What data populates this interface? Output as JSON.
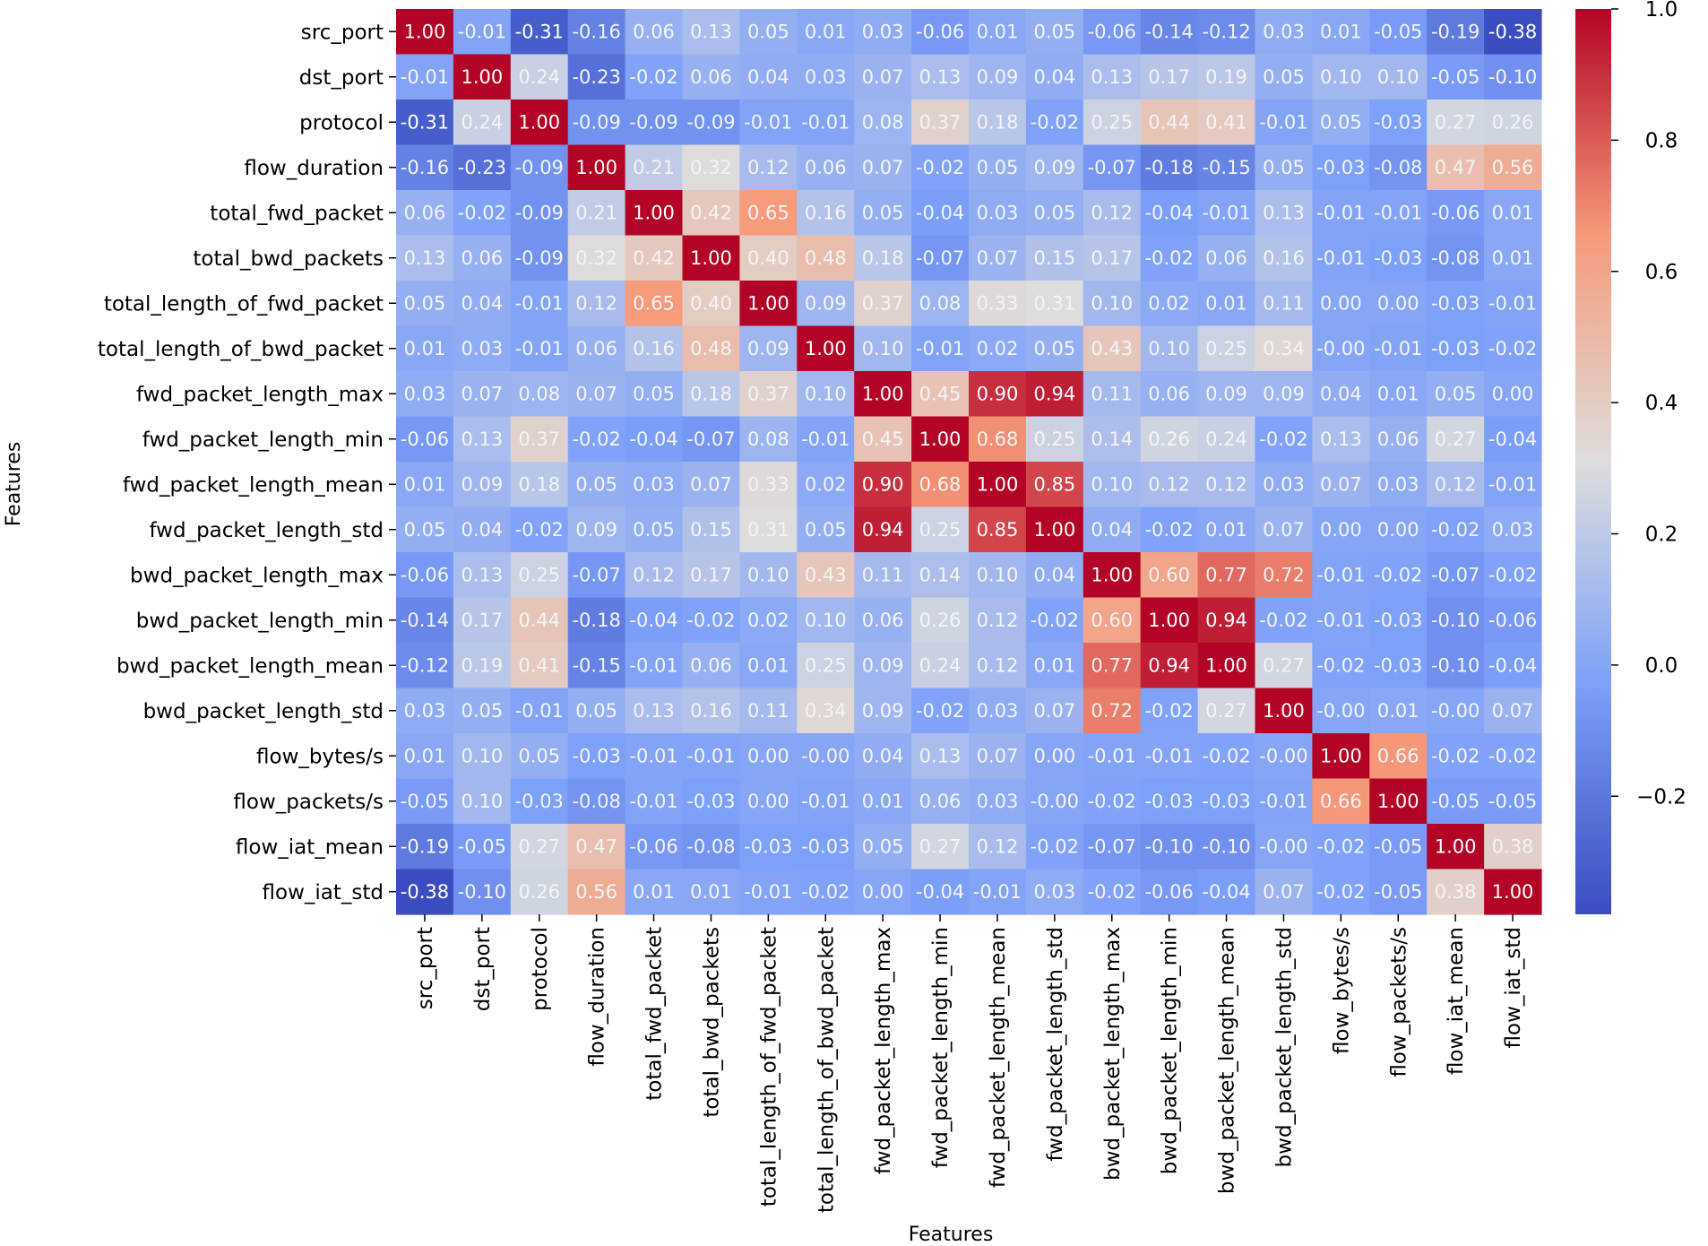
{
  "chart_data": {
    "type": "heatmap",
    "title": "",
    "xlabel": "Features",
    "ylabel": "Features",
    "colormap": "coolwarm",
    "vmin": -0.38,
    "vmax": 1.0,
    "colorbar_ticks": [
      1.0,
      0.8,
      0.6,
      0.4,
      0.2,
      0.0,
      -0.2
    ],
    "colorbar_tick_labels": [
      "1.0",
      "0.8",
      "0.6",
      "0.4",
      "0.2",
      "0.0",
      "−0.2"
    ],
    "labels": [
      "src_port",
      "dst_port",
      "protocol",
      "flow_duration",
      "total_fwd_packet",
      "total_bwd_packets",
      "total_length_of_fwd_packet",
      "total_length_of_bwd_packet",
      "fwd_packet_length_max",
      "fwd_packet_length_min",
      "fwd_packet_length_mean",
      "fwd_packet_length_std",
      "bwd_packet_length_max",
      "bwd_packet_length_min",
      "bwd_packet_length_mean",
      "bwd_packet_length_std",
      "flow_bytes/s",
      "flow_packets/s",
      "flow_iat_mean",
      "flow_iat_std"
    ],
    "matrix": [
      [
        1.0,
        -0.01,
        -0.31,
        -0.16,
        0.06,
        0.13,
        0.05,
        0.01,
        0.03,
        -0.06,
        0.01,
        0.05,
        -0.06,
        -0.14,
        -0.12,
        0.03,
        0.01,
        -0.05,
        -0.19,
        -0.38
      ],
      [
        -0.01,
        1.0,
        0.24,
        -0.23,
        -0.02,
        0.06,
        0.04,
        0.03,
        0.07,
        0.13,
        0.09,
        0.04,
        0.13,
        0.17,
        0.19,
        0.05,
        0.1,
        0.1,
        -0.05,
        -0.1
      ],
      [
        -0.31,
        0.24,
        1.0,
        -0.09,
        -0.09,
        -0.09,
        -0.01,
        -0.01,
        0.08,
        0.37,
        0.18,
        -0.02,
        0.25,
        0.44,
        0.41,
        -0.01,
        0.05,
        -0.03,
        0.27,
        0.26
      ],
      [
        -0.16,
        -0.23,
        -0.09,
        1.0,
        0.21,
        0.32,
        0.12,
        0.06,
        0.07,
        -0.02,
        0.05,
        0.09,
        -0.07,
        -0.18,
        -0.15,
        0.05,
        -0.03,
        -0.08,
        0.47,
        0.56
      ],
      [
        0.06,
        -0.02,
        -0.09,
        0.21,
        1.0,
        0.42,
        0.65,
        0.16,
        0.05,
        -0.04,
        0.03,
        0.05,
        0.12,
        -0.04,
        -0.01,
        0.13,
        -0.01,
        -0.01,
        -0.06,
        0.01
      ],
      [
        0.13,
        0.06,
        -0.09,
        0.32,
        0.42,
        1.0,
        0.4,
        0.48,
        0.18,
        -0.07,
        0.07,
        0.15,
        0.17,
        -0.02,
        0.06,
        0.16,
        -0.01,
        -0.03,
        -0.08,
        0.01
      ],
      [
        0.05,
        0.04,
        -0.01,
        0.12,
        0.65,
        0.4,
        1.0,
        0.09,
        0.37,
        0.08,
        0.33,
        0.31,
        0.1,
        0.02,
        0.01,
        0.11,
        0.0,
        0.0,
        -0.03,
        -0.01
      ],
      [
        0.01,
        0.03,
        -0.01,
        0.06,
        0.16,
        0.48,
        0.09,
        1.0,
        0.1,
        -0.01,
        0.02,
        0.05,
        0.43,
        0.1,
        0.25,
        0.34,
        -0.0,
        -0.01,
        -0.03,
        -0.02
      ],
      [
        0.03,
        0.07,
        0.08,
        0.07,
        0.05,
        0.18,
        0.37,
        0.1,
        1.0,
        0.45,
        0.9,
        0.94,
        0.11,
        0.06,
        0.09,
        0.09,
        0.04,
        0.01,
        0.05,
        0.0
      ],
      [
        -0.06,
        0.13,
        0.37,
        -0.02,
        -0.04,
        -0.07,
        0.08,
        -0.01,
        0.45,
        1.0,
        0.68,
        0.25,
        0.14,
        0.26,
        0.24,
        -0.02,
        0.13,
        0.06,
        0.27,
        -0.04
      ],
      [
        0.01,
        0.09,
        0.18,
        0.05,
        0.03,
        0.07,
        0.33,
        0.02,
        0.9,
        0.68,
        1.0,
        0.85,
        0.1,
        0.12,
        0.12,
        0.03,
        0.07,
        0.03,
        0.12,
        -0.01
      ],
      [
        0.05,
        0.04,
        -0.02,
        0.09,
        0.05,
        0.15,
        0.31,
        0.05,
        0.94,
        0.25,
        0.85,
        1.0,
        0.04,
        -0.02,
        0.01,
        0.07,
        0.0,
        0.0,
        -0.02,
        0.03
      ],
      [
        -0.06,
        0.13,
        0.25,
        -0.07,
        0.12,
        0.17,
        0.1,
        0.43,
        0.11,
        0.14,
        0.1,
        0.04,
        1.0,
        0.6,
        0.77,
        0.72,
        -0.01,
        -0.02,
        -0.07,
        -0.02
      ],
      [
        -0.14,
        0.17,
        0.44,
        -0.18,
        -0.04,
        -0.02,
        0.02,
        0.1,
        0.06,
        0.26,
        0.12,
        -0.02,
        0.6,
        1.0,
        0.94,
        -0.02,
        -0.01,
        -0.03,
        -0.1,
        -0.06
      ],
      [
        -0.12,
        0.19,
        0.41,
        -0.15,
        -0.01,
        0.06,
        0.01,
        0.25,
        0.09,
        0.24,
        0.12,
        0.01,
        0.77,
        0.94,
        1.0,
        0.27,
        -0.02,
        -0.03,
        -0.1,
        -0.04
      ],
      [
        0.03,
        0.05,
        -0.01,
        0.05,
        0.13,
        0.16,
        0.11,
        0.34,
        0.09,
        -0.02,
        0.03,
        0.07,
        0.72,
        -0.02,
        0.27,
        1.0,
        -0.0,
        0.01,
        -0.0,
        0.07
      ],
      [
        0.01,
        0.1,
        0.05,
        -0.03,
        -0.01,
        -0.01,
        0.0,
        -0.0,
        0.04,
        0.13,
        0.07,
        0.0,
        -0.01,
        -0.01,
        -0.02,
        -0.0,
        1.0,
        0.66,
        -0.02,
        -0.02
      ],
      [
        -0.05,
        0.1,
        -0.03,
        -0.08,
        -0.01,
        -0.03,
        0.0,
        -0.01,
        0.01,
        0.06,
        0.03,
        -0.0,
        -0.02,
        -0.03,
        -0.03,
        -0.01,
        0.66,
        1.0,
        -0.05,
        -0.05
      ],
      [
        -0.19,
        -0.05,
        0.27,
        0.47,
        -0.06,
        -0.08,
        -0.03,
        -0.03,
        0.05,
        0.27,
        0.12,
        -0.02,
        -0.07,
        -0.1,
        -0.1,
        -0.0,
        -0.02,
        -0.05,
        1.0,
        0.38
      ],
      [
        -0.38,
        -0.1,
        0.26,
        0.56,
        0.01,
        0.01,
        -0.01,
        -0.02,
        0.0,
        -0.04,
        -0.01,
        0.03,
        -0.02,
        -0.06,
        -0.04,
        0.07,
        -0.02,
        -0.05,
        0.38,
        1.0
      ]
    ]
  }
}
